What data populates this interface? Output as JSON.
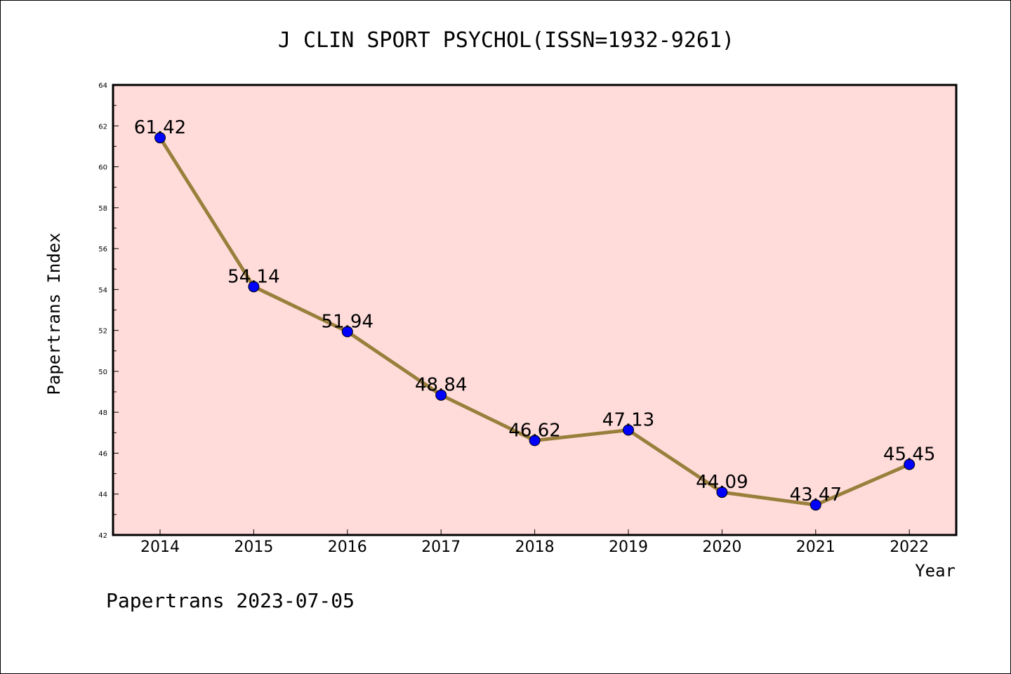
{
  "chart_data": {
    "type": "line",
    "title": "J CLIN SPORT PSYCHOL(ISSN=1932-9261)",
    "xlabel": "Year",
    "ylabel": "Papertrans Index",
    "categories": [
      "2014",
      "2015",
      "2016",
      "2017",
      "2018",
      "2019",
      "2020",
      "2021",
      "2022"
    ],
    "values": [
      61.42,
      54.14,
      51.94,
      48.84,
      46.62,
      47.13,
      44.09,
      43.47,
      45.45
    ],
    "value_labels": [
      "61.42",
      "54.14",
      "51.94",
      "48.84",
      "46.62",
      "47.13",
      "44.09",
      "43.47",
      "45.45"
    ],
    "ylim": [
      42,
      64
    ],
    "yticks": [
      "42",
      "44",
      "46",
      "48",
      "50",
      "52",
      "54",
      "56",
      "58",
      "60",
      "62",
      "64"
    ],
    "grid": false,
    "colors": {
      "plot_background": "#ffdcda",
      "line": "#9a7f3c",
      "marker": "#0000ff"
    }
  },
  "footer": "Papertrans 2023-07-05"
}
